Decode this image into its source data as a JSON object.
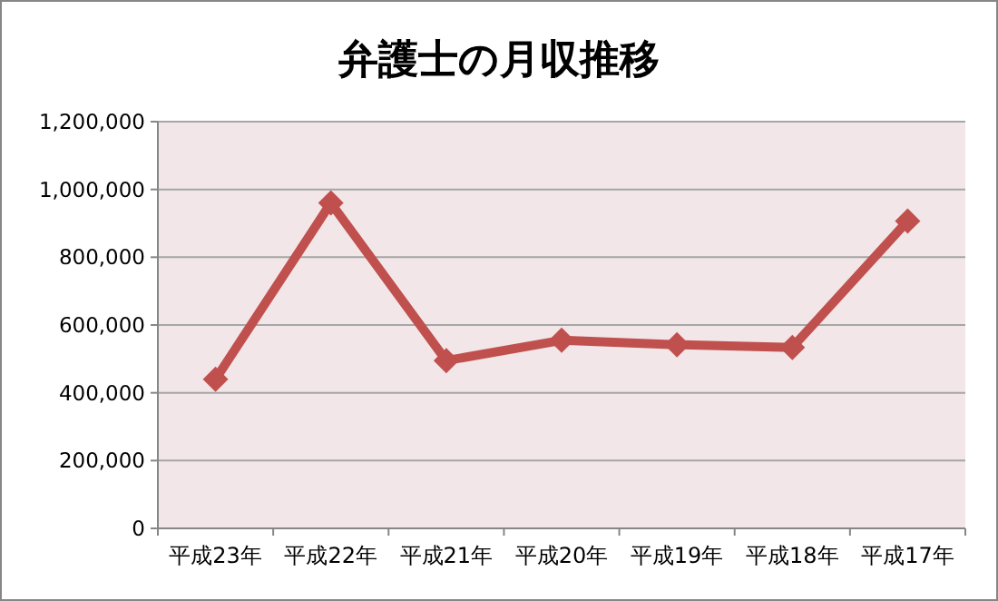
{
  "chart_data": {
    "type": "line",
    "title": "弁護士の月収推移",
    "categories": [
      "平成23年",
      "平成22年",
      "平成21年",
      "平成20年",
      "平成19年",
      "平成18年",
      "平成17年"
    ],
    "series": [
      {
        "color": "#c0504d",
        "values": [
          440000,
          960000,
          495000,
          555000,
          542000,
          534000,
          907000
        ]
      }
    ],
    "ylim": [
      0,
      1200000
    ],
    "yticks": [
      {
        "value": 0,
        "label": "0"
      },
      {
        "value": 200000,
        "label": "200,000"
      },
      {
        "value": 400000,
        "label": "400,000"
      },
      {
        "value": 600000,
        "label": "600,000"
      },
      {
        "value": 800000,
        "label": "800,000"
      },
      {
        "value": 1000000,
        "label": "1,000,000"
      },
      {
        "value": 1200000,
        "label": "1,200,000"
      }
    ],
    "grid": "y",
    "marker": "diamond",
    "line_style": "solid"
  }
}
